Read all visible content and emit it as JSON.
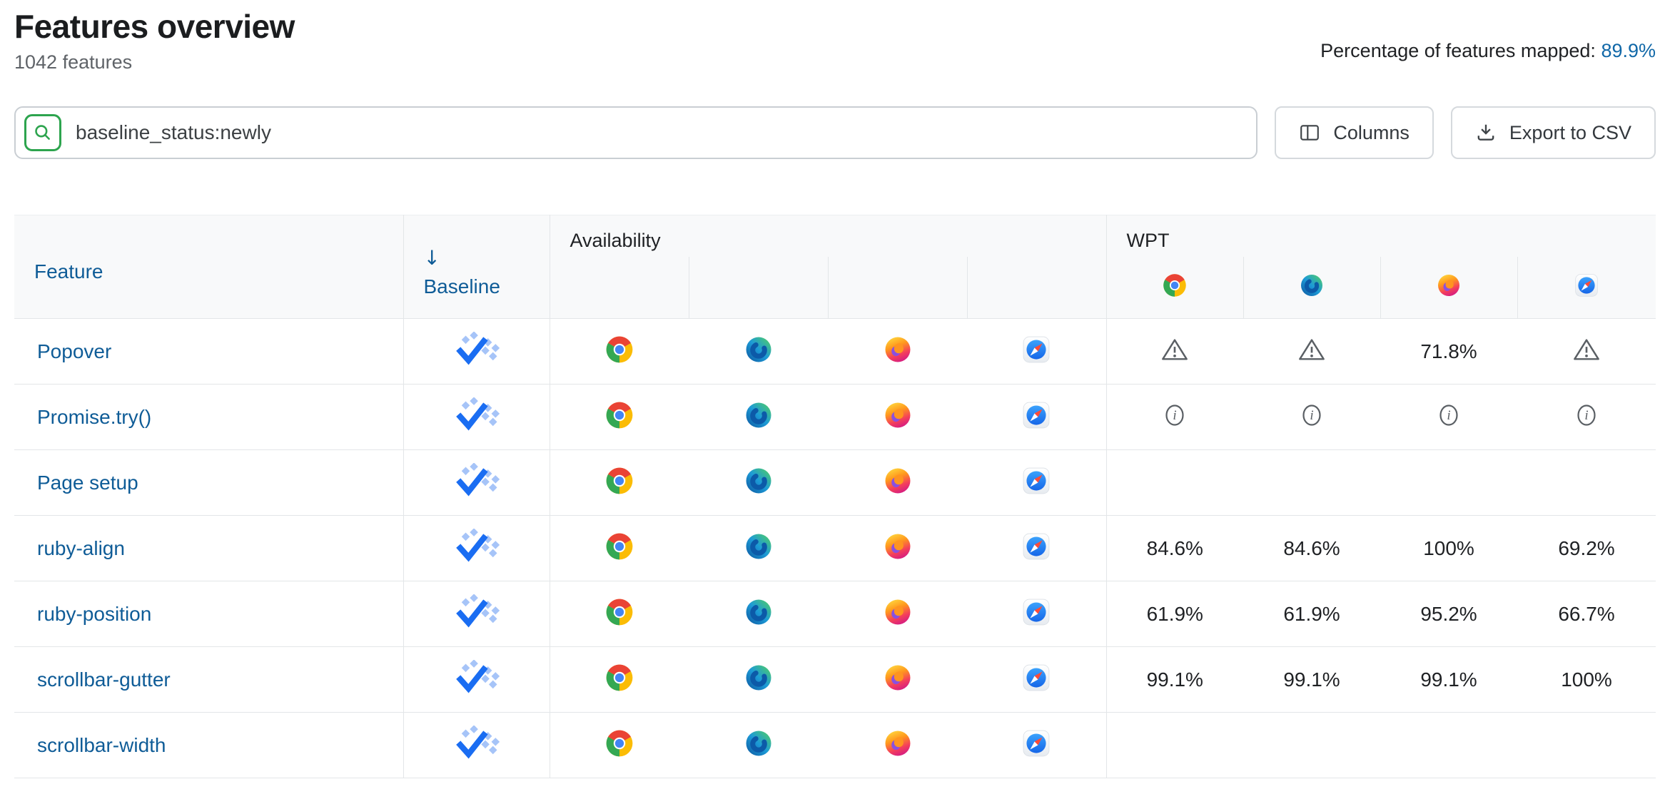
{
  "page": {
    "title": "Features overview",
    "subtitle": "1042 features",
    "mapped_label": "Percentage of features mapped:",
    "mapped_value": "89.9%"
  },
  "toolbar": {
    "search_value": "baseline_status:newly",
    "columns_label": "Columns",
    "export_label": "Export to CSV"
  },
  "table": {
    "headers": {
      "feature": "Feature",
      "baseline": "Baseline",
      "sort_arrow": "↓",
      "availability_group": "Availability",
      "wpt_group": "WPT"
    },
    "wpt_browser_icons": [
      "chrome-icon",
      "edge-icon",
      "firefox-icon",
      "safari-icon"
    ],
    "rows": [
      {
        "feature": "Popover",
        "baseline_icon": "baseline-newly-icon",
        "availability_icons": [
          "chrome-icon",
          "edge-icon",
          "firefox-icon",
          "safari-icon"
        ],
        "wpt": [
          {
            "icon": "warning-icon"
          },
          {
            "icon": "warning-icon"
          },
          {
            "value": "71.8%"
          },
          {
            "icon": "warning-icon"
          }
        ]
      },
      {
        "feature": "Promise.try()",
        "baseline_icon": "baseline-newly-icon",
        "availability_icons": [
          "chrome-icon",
          "edge-icon",
          "firefox-icon",
          "safari-icon"
        ],
        "wpt": [
          {
            "icon": "info-icon"
          },
          {
            "icon": "info-icon"
          },
          {
            "icon": "info-icon"
          },
          {
            "icon": "info-icon"
          }
        ]
      },
      {
        "feature": "Page setup",
        "baseline_icon": "baseline-newly-icon",
        "availability_icons": [
          "chrome-icon",
          "edge-icon",
          "firefox-icon",
          "safari-icon"
        ],
        "wpt": [
          {},
          {},
          {},
          {}
        ]
      },
      {
        "feature": "ruby-align",
        "baseline_icon": "baseline-newly-icon",
        "availability_icons": [
          "chrome-icon",
          "edge-icon",
          "firefox-icon",
          "safari-icon"
        ],
        "wpt": [
          {
            "value": "84.6%"
          },
          {
            "value": "84.6%"
          },
          {
            "value": "100%"
          },
          {
            "value": "69.2%"
          }
        ]
      },
      {
        "feature": "ruby-position",
        "baseline_icon": "baseline-newly-icon",
        "availability_icons": [
          "chrome-icon",
          "edge-icon",
          "firefox-icon",
          "safari-icon"
        ],
        "wpt": [
          {
            "value": "61.9%"
          },
          {
            "value": "61.9%"
          },
          {
            "value": "95.2%"
          },
          {
            "value": "66.7%"
          }
        ]
      },
      {
        "feature": "scrollbar-gutter",
        "baseline_icon": "baseline-newly-icon",
        "availability_icons": [
          "chrome-icon",
          "edge-icon",
          "firefox-icon",
          "safari-icon"
        ],
        "wpt": [
          {
            "value": "99.1%"
          },
          {
            "value": "99.1%"
          },
          {
            "value": "99.1%"
          },
          {
            "value": "100%"
          }
        ]
      },
      {
        "feature": "scrollbar-width",
        "baseline_icon": "baseline-newly-icon",
        "availability_icons": [
          "chrome-icon",
          "edge-icon",
          "firefox-icon",
          "safari-icon"
        ],
        "wpt": [
          {},
          {},
          {},
          {}
        ]
      }
    ]
  },
  "colors": {
    "link": "#0f5c97",
    "mapped_link": "#1168a8",
    "accent_green": "#2da44e",
    "baseline_check": "#1a6df2",
    "baseline_dot": "#a6c4f8",
    "icon_gray": "#5a5f64"
  }
}
